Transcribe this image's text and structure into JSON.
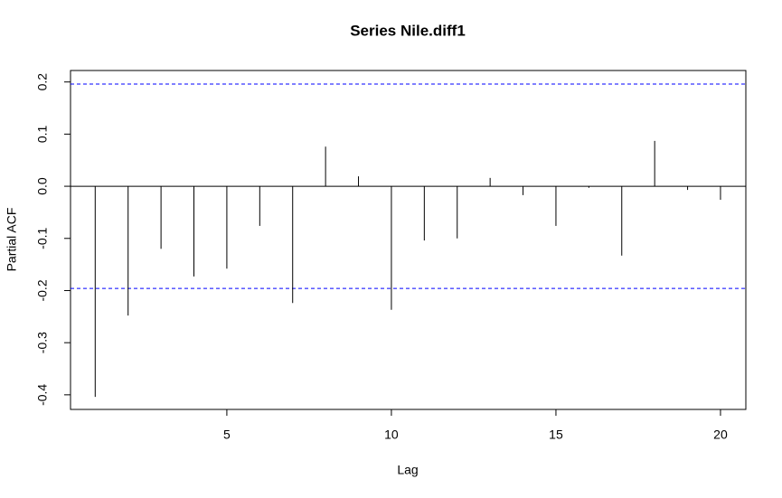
{
  "chart_data": {
    "type": "spike",
    "title": "Series  Nile.diff1",
    "xlabel": "Lag",
    "ylabel": "Partial ACF",
    "x": [
      1,
      2,
      3,
      4,
      5,
      6,
      7,
      8,
      9,
      10,
      11,
      12,
      13,
      14,
      15,
      16,
      17,
      18,
      19,
      20
    ],
    "values": [
      -0.404,
      -0.248,
      -0.12,
      -0.173,
      -0.158,
      -0.076,
      -0.224,
      0.076,
      0.019,
      -0.237,
      -0.104,
      -0.1,
      0.016,
      -0.017,
      -0.076,
      -0.003,
      -0.133,
      0.087,
      -0.007,
      -0.026
    ],
    "color": "#000000",
    "confidence_lines": [
      {
        "value": 0.196,
        "color": "#0000ff"
      },
      {
        "value": -0.196,
        "color": "#0000ff"
      }
    ],
    "xlim": [
      0.25,
      20.77
    ],
    "xticks": [
      5,
      10,
      15,
      20
    ],
    "ylim": [
      -0.428,
      0.222
    ],
    "yticks": [
      -0.4,
      -0.3,
      -0.2,
      -0.1,
      {
        "value": 0,
        "label": "0.0"
      },
      0.1,
      0.2
    ]
  }
}
